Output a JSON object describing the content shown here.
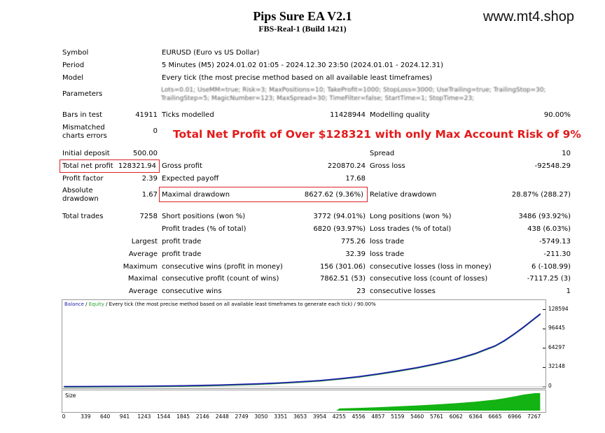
{
  "header": {
    "title": "Pips Sure EA V2.1",
    "subtitle": "FBS-Real-1 (Build 1421)",
    "site": "www.mt4.shop"
  },
  "info": {
    "symbol_label": "Symbol",
    "symbol_value": "EURUSD (Euro vs US Dollar)",
    "period_label": "Period",
    "period_value": "5 Minutes (M5) 2024.01.02 01:05 - 2024.12.30 23:50 (2024.01.01 - 2024.12.31)",
    "model_label": "Model",
    "model_value": "Every tick (the most precise method based on all available least timeframes)",
    "parameters_label": "Parameters",
    "parameters_line1": "Lots=0.01; UseMM=true; Risk=3; MaxPositions=10; TakeProfit=1000; StopLoss=3000; UseTrailing=true; TrailingStop=30;",
    "parameters_line2": "TrailingStep=5; MagicNumber=123; MaxSpread=30; TimeFilter=false; StartTime=1; StopTime=23;"
  },
  "promo": "Total Net Profit of Over $128321 with only Max Account Risk of 9%",
  "stats": {
    "bars_label": "Bars in test",
    "bars_value": "41911",
    "ticks_label": "Ticks modelled",
    "ticks_value": "11428944",
    "quality_label": "Modelling quality",
    "quality_value": "90.00%",
    "mismatch_label_1": "Mismatched",
    "mismatch_label_2": "charts errors",
    "mismatch_value": "0",
    "deposit_label": "Initial deposit",
    "deposit_value": "500.00",
    "spread_label": "Spread",
    "spread_value": "10",
    "netprofit_label": "Total net profit",
    "netprofit_value": "128321.94",
    "grossprofit_label": "Gross profit",
    "grossprofit_value": "220870.24",
    "grossloss_label": "Gross loss",
    "grossloss_value": "-92548.29",
    "pf_label": "Profit factor",
    "pf_value": "2.39",
    "payoff_label": "Expected payoff",
    "payoff_value": "17.68",
    "absdd_label_1": "Absolute",
    "absdd_label_2": "drawdown",
    "absdd_value": "1.67",
    "maxdd_label": "Maximal drawdown",
    "maxdd_value": "8627.62 (9.36%)",
    "reldd_label": "Relative drawdown",
    "reldd_value": "28.87% (288.27)",
    "trades_label": "Total trades",
    "trades_value": "7258",
    "short_label": "Short positions (won %)",
    "short_value": "3772 (94.01%)",
    "long_label": "Long positions (won %)",
    "long_value": "3486 (93.92%)",
    "ptrades_label": "Profit trades (% of total)",
    "ptrades_value": "6820 (93.97%)",
    "ltrades_label": "Loss trades (% of total)",
    "ltrades_value": "438 (6.03%)",
    "largest_label": "Largest",
    "largest_pt_label": "profit trade",
    "largest_pt_value": "775.26",
    "largest_lt_label": "loss trade",
    "largest_lt_value": "-5749.13",
    "average_label": "Average",
    "average_pt_label": "profit trade",
    "average_pt_value": "32.39",
    "average_lt_label": "loss trade",
    "average_lt_value": "-211.30",
    "maximum_label": "Maximum",
    "max_cw_label": "consecutive wins (profit in money)",
    "max_cw_value": "156 (301.06)",
    "max_cl_label": "consecutive losses (loss in money)",
    "max_cl_value": "6 (-108.99)",
    "maximal_label": "Maximal",
    "maxl_cp_label": "consecutive profit (count of wins)",
    "maxl_cp_value": "7862.51 (53)",
    "maxl_cl_label": "consecutive loss (count of losses)",
    "maxl_cl_value": "-7117.25 (3)",
    "avg2_label": "Average",
    "avg_cw_label": "consecutive wins",
    "avg_cw_value": "23",
    "avg_cl_label": "consecutive losses",
    "avg_cl_value": "1"
  },
  "chart_data": {
    "type": "line",
    "legend_balance": "Balance",
    "legend_sep1": " / ",
    "legend_equity": "Equity",
    "legend_rest": " / Every tick (the most precise method based on all available least timeframes to generate each tick) / 90.00%",
    "size_label": "Size",
    "y_ticks": [
      "128594",
      "96445",
      "64297",
      "32148",
      "0"
    ],
    "y_tick_values": [
      128594,
      96445,
      64297,
      32148,
      0
    ],
    "x_ticks": [
      "0",
      "339",
      "640",
      "941",
      "1243",
      "1544",
      "1845",
      "2146",
      "2448",
      "2749",
      "3050",
      "3351",
      "3653",
      "3954",
      "4255",
      "4556",
      "4857",
      "5159",
      "5460",
      "5761",
      "6062",
      "6364",
      "6665",
      "6966",
      "7267"
    ],
    "ylim": [
      0,
      135000
    ],
    "xlim": [
      0,
      7400
    ],
    "colors": {
      "balance": "#1f1fa8",
      "equity": "#22a22a",
      "size": "#13b313"
    },
    "series": [
      {
        "name": "Balance",
        "x": [
          0,
          600,
          1200,
          1800,
          2400,
          3000,
          3300,
          3600,
          3950,
          4250,
          4550,
          4850,
          5150,
          5450,
          5750,
          6050,
          6350,
          6550,
          6650,
          6800,
          6950,
          7100,
          7267,
          7350
        ],
        "y": [
          500,
          700,
          1100,
          1800,
          3000,
          5000,
          6400,
          8200,
          10500,
          13500,
          17000,
          21500,
          26500,
          32000,
          38500,
          46000,
          55500,
          64000,
          68000,
          77000,
          88000,
          100000,
          114000,
          121000
        ]
      }
    ]
  }
}
